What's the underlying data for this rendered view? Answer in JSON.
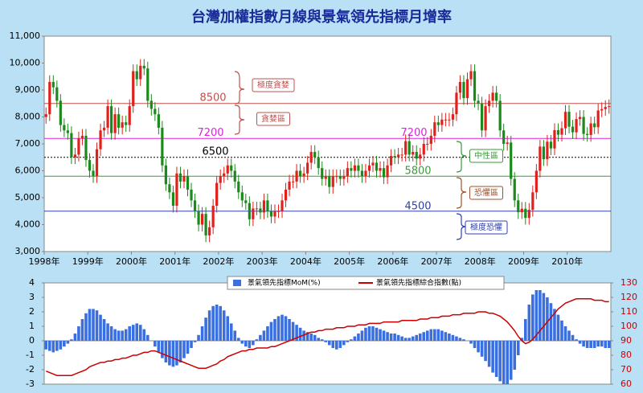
{
  "chart_data": [
    {
      "type": "candlestick",
      "title": "台灣加權指數月線與景氣領先指標月增率",
      "open": [
        8000,
        8100,
        9300,
        9100,
        8600,
        7700,
        7500,
        7400,
        6500,
        6600,
        7200,
        7300,
        6400,
        6000,
        5800,
        6800,
        7500,
        7600,
        8400,
        7400,
        8100,
        7600,
        7800,
        7700,
        8400,
        9700,
        9400,
        9900,
        9800,
        8600,
        8300,
        8100,
        7600,
        6200,
        5500,
        5200,
        4700,
        5900,
        5600,
        5800,
        5300,
        4900,
        4500,
        4000,
        4400,
        3600,
        3900,
        4700,
        5550,
        5800,
        5900,
        6200,
        6000,
        5600,
        5200,
        4900,
        4800,
        4200,
        4600,
        4600,
        4450,
        4900,
        4500,
        4300,
        4500,
        4500,
        4900,
        5300,
        5600,
        5600,
        6000,
        5800,
        5900,
        6300,
        6700,
        6500,
        6100,
        5700,
        5800,
        5400,
        5800,
        5800,
        5700,
        5800,
        6100,
        6000,
        6200,
        6000,
        5800,
        6000,
        6200,
        6300,
        6000,
        6100,
        5760,
        6200,
        6550,
        6500,
        6600,
        6600,
        7100,
        6600,
        6700,
        6450,
        6600,
        7000,
        7000,
        7300,
        7800,
        7700,
        7900,
        7900,
        7900,
        8100,
        8900,
        9300,
        8700,
        9400,
        9700,
        8600,
        8500,
        7500,
        8400,
        8600,
        8900,
        8600,
        7500,
        7000,
        7050,
        5700,
        4900,
        4460,
        4590,
        4250,
        4550,
        5200,
        6000,
        6900,
        6430,
        7080,
        6830,
        7510,
        7340,
        7580,
        8190,
        7640,
        7430,
        7920,
        8000,
        7370,
        7330,
        7760,
        7620,
        8240,
        8290,
        8370
      ],
      "high": [
        8350,
        9550,
        9550,
        9350,
        8850,
        7950,
        7750,
        7650,
        6850,
        7450,
        7550,
        7550,
        6650,
        6250,
        7050,
        7750,
        7850,
        8650,
        8650,
        8350,
        8350,
        8050,
        8050,
        8650,
        9950,
        9950,
        10150,
        10150,
        10050,
        8850,
        8550,
        8350,
        7850,
        6450,
        5750,
        5450,
        6150,
        6150,
        6050,
        6050,
        5550,
        5150,
        4750,
        4650,
        4650,
        4150,
        4950,
        5800,
        6050,
        6150,
        6450,
        6450,
        6250,
        5850,
        5450,
        5150,
        5050,
        4850,
        4850,
        4850,
        5150,
        5150,
        4750,
        4750,
        4750,
        5150,
        5550,
        5850,
        5850,
        6250,
        6250,
        6150,
        6550,
        6950,
        6950,
        6750,
        6350,
        6050,
        6050,
        6050,
        6050,
        6050,
        6050,
        6350,
        6350,
        6450,
        6450,
        6250,
        6250,
        6450,
        6550,
        6550,
        6350,
        6350,
        6450,
        6800,
        6800,
        6850,
        6850,
        7350,
        7350,
        6950,
        6950,
        6850,
        7250,
        7250,
        7550,
        8050,
        8050,
        8150,
        8150,
        8150,
        8350,
        9150,
        9550,
        9550,
        9650,
        9950,
        9950,
        8850,
        8750,
        8650,
        8850,
        9150,
        9150,
        8850,
        7750,
        7300,
        7300,
        5950,
        5150,
        4840,
        4840,
        4800,
        5450,
        6250,
        7150,
        7150,
        7330,
        7330,
        7760,
        7760,
        7830,
        8440,
        8440,
        7890,
        8170,
        8250,
        8250,
        7620,
        8010,
        8010,
        8490,
        8540,
        8620,
        8650
      ],
      "low": [
        7750,
        7850,
        8850,
        8350,
        7450,
        7250,
        7150,
        6250,
        6250,
        6350,
        6950,
        6150,
        5750,
        5550,
        5550,
        6550,
        7250,
        7350,
        7150,
        7150,
        7350,
        7350,
        7450,
        7450,
        8150,
        9150,
        9150,
        9550,
        8350,
        8050,
        7850,
        7350,
        5950,
        5250,
        4950,
        4450,
        4450,
        5350,
        5350,
        5050,
        4650,
        4250,
        3750,
        3750,
        3350,
        3350,
        3650,
        4450,
        5300,
        5550,
        5650,
        5750,
        5350,
        4950,
        4650,
        4550,
        3950,
        3950,
        4350,
        4200,
        4200,
        4250,
        4050,
        4050,
        4250,
        4250,
        4650,
        5050,
        5350,
        5350,
        5550,
        5550,
        5650,
        6050,
        6250,
        5850,
        5450,
        5450,
        5150,
        5150,
        5550,
        5450,
        5450,
        5550,
        5750,
        5750,
        5750,
        5550,
        5550,
        5750,
        5950,
        5750,
        5750,
        5510,
        5510,
        5950,
        6250,
        6250,
        6350,
        6350,
        6350,
        6350,
        6200,
        6200,
        6350,
        6750,
        6750,
        7050,
        7450,
        7450,
        7650,
        7650,
        7650,
        7850,
        8650,
        8450,
        8450,
        9150,
        8350,
        8250,
        7250,
        7250,
        8150,
        8350,
        8350,
        7250,
        6750,
        6750,
        5450,
        4650,
        4210,
        4210,
        4000,
        4000,
        4300,
        4950,
        5750,
        6180,
        6180,
        6580,
        6580,
        7090,
        7090,
        7330,
        7390,
        7180,
        7180,
        7670,
        7120,
        7080,
        7080,
        7370,
        7370,
        7990,
        8040,
        8120
      ],
      "close": [
        8100,
        9300,
        9100,
        8600,
        7700,
        7500,
        7400,
        6500,
        6600,
        7200,
        7300,
        6400,
        6000,
        5800,
        6800,
        7500,
        7600,
        8400,
        7400,
        8100,
        7600,
        7800,
        7700,
        8400,
        9700,
        9400,
        9900,
        9800,
        8600,
        8300,
        8100,
        7600,
        6200,
        5500,
        5200,
        4700,
        5900,
        5600,
        5800,
        5300,
        4900,
        4500,
        4000,
        4400,
        3600,
        3900,
        4700,
        5550,
        5800,
        5900,
        6200,
        6000,
        5600,
        5200,
        4900,
        4800,
        4200,
        4600,
        4600,
        4450,
        4900,
        4500,
        4300,
        4500,
        4500,
        4900,
        5300,
        5600,
        5600,
        6000,
        5800,
        5900,
        6300,
        6700,
        6500,
        6100,
        5700,
        5800,
        5400,
        5800,
        5800,
        5700,
        5800,
        6100,
        6000,
        6200,
        6000,
        5800,
        6000,
        6200,
        6300,
        6000,
        6100,
        5760,
        6200,
        6550,
        6500,
        6600,
        6600,
        7100,
        6600,
        6700,
        6450,
        6600,
        7000,
        7000,
        7300,
        7800,
        7700,
        7900,
        7900,
        7900,
        8100,
        8900,
        9300,
        8700,
        9400,
        9700,
        8600,
        8500,
        7500,
        8400,
        8600,
        8900,
        8600,
        7500,
        7000,
        7050,
        5700,
        4900,
        4460,
        4590,
        4250,
        4550,
        5200,
        6000,
        6900,
        6430,
        7080,
        6830,
        7510,
        7340,
        7580,
        8190,
        7640,
        7430,
        7920,
        8000,
        7370,
        7330,
        7760,
        7620,
        8240,
        8290,
        8370,
        8400
      ],
      "up_color": "#e0201a",
      "down_color": "#1a8a1a",
      "ylim": [
        3000,
        11000
      ],
      "yticks": [
        {
          "value": 3000,
          "label": "3,000"
        },
        {
          "value": 4000,
          "label": "4,000"
        },
        {
          "value": 5000,
          "label": "5,000"
        },
        {
          "value": 6000,
          "label": "6,000"
        },
        {
          "value": 7000,
          "label": "7,000"
        },
        {
          "value": 8000,
          "label": "8,000"
        },
        {
          "value": 9000,
          "label": "9,000"
        },
        {
          "value": 10000,
          "label": "10,000"
        },
        {
          "value": 11000,
          "label": "11,000"
        }
      ],
      "xlim": [
        1998,
        2011
      ],
      "xticks": [
        {
          "value": 1998,
          "label": "1998年"
        },
        {
          "value": 1999,
          "label": "1999年"
        },
        {
          "value": 2000,
          "label": "2000年"
        },
        {
          "value": 2001,
          "label": "2001年"
        },
        {
          "value": 2002,
          "label": "2002年"
        },
        {
          "value": 2003,
          "label": "2003年"
        },
        {
          "value": 2004,
          "label": "2004年"
        },
        {
          "value": 2005,
          "label": "2005年"
        },
        {
          "value": 2006,
          "label": "2006年"
        },
        {
          "value": 2007,
          "label": "2007年"
        },
        {
          "value": 2008,
          "label": "2008年"
        },
        {
          "value": 2009,
          "label": "2009年"
        },
        {
          "value": 2010,
          "label": "2010年"
        }
      ],
      "hlines": [
        {
          "value": 8500,
          "color": "#c0504d"
        },
        {
          "value": 7200,
          "color": "#e020e0"
        },
        {
          "value": 6500,
          "color": "#000000"
        },
        {
          "value": 5800,
          "color": "#3a9a3a"
        },
        {
          "value": 4500,
          "color": "#3040b0"
        }
      ],
      "annotations": [
        {
          "text": "極度貪婪",
          "color": "#c0504d"
        },
        {
          "text": "貪婪區",
          "color": "#c0504d"
        },
        {
          "text": "中性區",
          "color": "#3a9a3a"
        },
        {
          "text": "恐懼區",
          "color": "#a0522d"
        },
        {
          "text": "極度恐懼",
          "color": "#3040b0"
        }
      ]
    },
    {
      "type": "bar_line",
      "series": [
        {
          "name": "景氣領先指標MoM(%)",
          "type": "bar",
          "color": "#3a6fe0",
          "values": [
            -0.6,
            -0.7,
            -0.8,
            -0.7,
            -0.6,
            -0.4,
            -0.2,
            0.1,
            0.5,
            1.0,
            1.5,
            1.9,
            2.2,
            2.2,
            2.1,
            1.8,
            1.5,
            1.2,
            1.0,
            0.8,
            0.7,
            0.7,
            0.8,
            1.0,
            1.1,
            1.2,
            1.1,
            0.8,
            0.4,
            0.0,
            -0.4,
            -0.8,
            -1.2,
            -1.5,
            -1.7,
            -1.8,
            -1.7,
            -1.5,
            -1.2,
            -0.9,
            -0.5,
            -0.1,
            0.4,
            1.0,
            1.6,
            2.1,
            2.4,
            2.5,
            2.4,
            2.1,
            1.7,
            1.2,
            0.7,
            0.2,
            -0.2,
            -0.4,
            -0.5,
            -0.3,
            0.1,
            0.4,
            0.7,
            1.0,
            1.3,
            1.5,
            1.7,
            1.8,
            1.7,
            1.5,
            1.3,
            1.1,
            0.9,
            0.7,
            0.6,
            0.5,
            0.4,
            0.2,
            0.1,
            -0.1,
            -0.3,
            -0.5,
            -0.6,
            -0.5,
            -0.3,
            -0.1,
            0.1,
            0.3,
            0.5,
            0.7,
            0.9,
            1.0,
            1.0,
            0.9,
            0.8,
            0.7,
            0.6,
            0.5,
            0.5,
            0.4,
            0.3,
            0.2,
            0.2,
            0.3,
            0.4,
            0.5,
            0.6,
            0.7,
            0.8,
            0.8,
            0.8,
            0.7,
            0.6,
            0.5,
            0.4,
            0.3,
            0.2,
            0.1,
            0.0,
            -0.2,
            -0.5,
            -0.8,
            -1.1,
            -1.4,
            -1.8,
            -2.2,
            -2.5,
            -2.8,
            -3.0,
            -3.0,
            -2.7,
            -2.0,
            -1.0,
            0.2,
            1.5,
            2.5,
            3.2,
            3.5,
            3.5,
            3.3,
            3.0,
            2.6,
            2.2,
            1.8,
            1.4,
            1.0,
            0.7,
            0.4,
            0.1,
            -0.2,
            -0.4,
            -0.5,
            -0.5,
            -0.5,
            -0.4,
            -0.4,
            -0.5,
            -0.5
          ]
        },
        {
          "name": "景氣領先指標綜合指數(點)",
          "type": "line",
          "axis": "y2",
          "color": "#cc0000",
          "values": [
            69,
            68,
            67,
            66,
            66,
            66,
            66,
            66,
            67,
            68,
            69,
            70,
            72,
            73,
            74,
            75,
            75,
            76,
            76,
            77,
            77,
            78,
            78,
            79,
            80,
            80,
            81,
            82,
            82,
            83,
            83,
            82,
            81,
            80,
            79,
            78,
            77,
            76,
            75,
            74,
            73,
            72,
            71,
            71,
            71,
            72,
            73,
            74,
            76,
            77,
            79,
            80,
            81,
            82,
            83,
            83,
            84,
            84,
            85,
            85,
            85,
            85,
            86,
            86,
            87,
            88,
            89,
            90,
            91,
            92,
            93,
            94,
            95,
            96,
            96,
            97,
            97,
            98,
            98,
            98,
            99,
            99,
            99,
            100,
            100,
            100,
            101,
            101,
            101,
            102,
            102,
            102,
            102,
            103,
            103,
            103,
            103,
            103,
            104,
            104,
            104,
            104,
            104,
            105,
            105,
            105,
            106,
            106,
            106,
            107,
            107,
            107,
            108,
            108,
            108,
            109,
            109,
            109,
            109,
            110,
            110,
            110,
            109,
            109,
            108,
            107,
            105,
            103,
            100,
            97,
            93,
            90,
            88,
            89,
            91,
            94,
            97,
            100,
            103,
            106,
            109,
            112,
            114,
            116,
            117,
            118,
            119,
            119,
            119,
            119,
            119,
            118,
            118,
            118,
            117,
            117
          ]
        }
      ],
      "ylim": [
        -3,
        4
      ],
      "yticks": [
        -3,
        -2,
        -1,
        0,
        1,
        2,
        3,
        4
      ],
      "y2lim": [
        60,
        130
      ],
      "y2ticks": [
        60,
        70,
        80,
        90,
        100,
        110,
        120,
        130
      ],
      "xlim": [
        1998,
        2011
      ]
    }
  ]
}
